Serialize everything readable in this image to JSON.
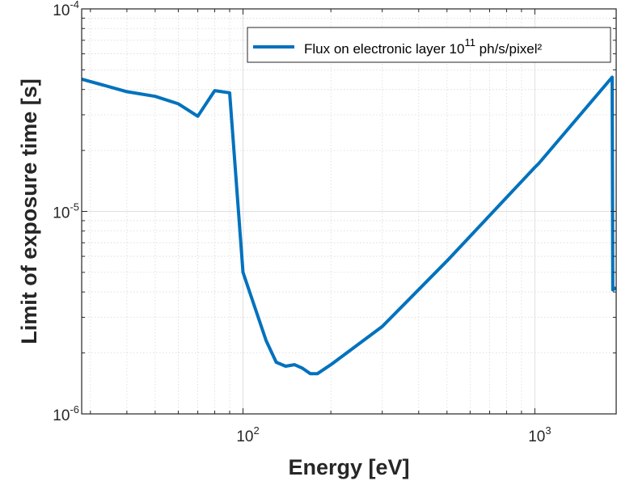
{
  "chart_data": {
    "type": "line",
    "xlabel": "Energy [eV]",
    "ylabel": "Limit of exposure time [s]",
    "x_scale": "log",
    "y_scale": "log",
    "xlim": [
      28,
      1900
    ],
    "ylim": [
      1e-06,
      0.0001
    ],
    "grid": true,
    "minor_grid": true,
    "legend_position": "top-right",
    "x_ticks": [
      {
        "value": 100,
        "base": "10",
        "exp": "2"
      },
      {
        "value": 1000,
        "base": "10",
        "exp": "3"
      }
    ],
    "y_ticks": [
      {
        "value": 1e-06,
        "base": "10",
        "exp": "-6"
      },
      {
        "value": 1e-05,
        "base": "10",
        "exp": "-5"
      },
      {
        "value": 0.0001,
        "base": "10",
        "exp": "-4"
      }
    ],
    "series": [
      {
        "name": "Flux on electronic layer 10^11 ph/s/pixel²",
        "legend_prefix": "Flux on electronic layer 10",
        "legend_sup": "11",
        "legend_suffix": " ph/s/pixel²",
        "color": "#0072BD",
        "x": [
          28,
          40,
          50,
          60,
          70,
          80,
          90,
          100,
          120,
          130,
          140,
          150,
          160,
          170,
          180,
          200,
          300,
          500,
          1000,
          1030,
          1840,
          1850,
          1900
        ],
        "y": [
          4.5e-05,
          3.9e-05,
          3.7e-05,
          3.4e-05,
          2.95e-05,
          3.95e-05,
          3.85e-05,
          5e-06,
          2.3e-06,
          1.8e-06,
          1.72e-06,
          1.75e-06,
          1.68e-06,
          1.58e-06,
          1.58e-06,
          1.75e-06,
          2.7e-06,
          5.7e-06,
          1.65e-05,
          1.72e-05,
          4.6e-05,
          4.1e-06,
          4.2e-06
        ]
      }
    ]
  }
}
